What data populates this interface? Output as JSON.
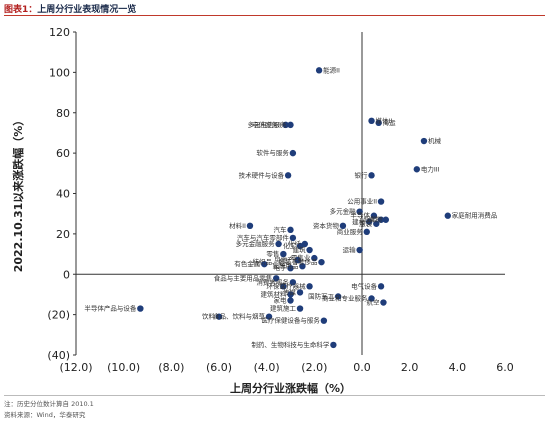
{
  "figure": {
    "label": "图表1：",
    "title": "上周分行业表现情况一览",
    "note": "注：历史分位数计算自 2010.1",
    "source": "资料来源：Wind，华泰研究"
  },
  "chart_data": {
    "type": "scatter",
    "xlabel": "上周分行业涨跌幅（%）",
    "ylabel": "2022.10.31以来涨跌幅（%）",
    "xlim": [
      -12,
      6
    ],
    "ylim": [
      -40,
      120
    ],
    "xticks": [
      "(12.0)",
      "(10.0)",
      "(8.0)",
      "(6.0)",
      "(4.0)",
      "(2.0)",
      "0.0",
      "2.0",
      "4.0",
      "6.0"
    ],
    "yticks": [
      "(40)",
      "(20)",
      "0",
      "20",
      "40",
      "60",
      "80",
      "100",
      "120"
    ],
    "grid": false,
    "marker_color": "#1f3d7a",
    "points": [
      {
        "label": "能源II",
        "x": -1.8,
        "y": 101
      },
      {
        "label": "媒体II",
        "x": 0.4,
        "y": 76
      },
      {
        "label": "海运",
        "x": 0.7,
        "y": 75
      },
      {
        "label": "电信服务II",
        "x": -3.2,
        "y": 74
      },
      {
        "label": "多元电信服务",
        "x": -3.0,
        "y": 74
      },
      {
        "label": "机械",
        "x": 2.6,
        "y": 66
      },
      {
        "label": "软件与服务",
        "x": -2.9,
        "y": 60
      },
      {
        "label": "电力III",
        "x": 2.3,
        "y": 52
      },
      {
        "label": "技术硬件与设备",
        "x": -3.1,
        "y": 49
      },
      {
        "label": "银行",
        "x": 0.4,
        "y": 49
      },
      {
        "label": "公用事业II",
        "x": 0.8,
        "y": 36
      },
      {
        "label": "多元金融",
        "x": -0.1,
        "y": 31
      },
      {
        "label": "家庭耐用消费品",
        "x": 3.6,
        "y": 29
      },
      {
        "label": "半导体",
        "x": 0.5,
        "y": 29
      },
      {
        "label": "保险",
        "x": 0.8,
        "y": 27
      },
      {
        "label": "建材",
        "x": 0.3,
        "y": 26
      },
      {
        "label": "食物",
        "x": 1.0,
        "y": 27
      },
      {
        "label": "服装",
        "x": 0.6,
        "y": 25
      },
      {
        "label": "材料II",
        "x": -4.7,
        "y": 24
      },
      {
        "label": "汽车",
        "x": -3.0,
        "y": 22
      },
      {
        "label": "汽车与汽车零部件",
        "x": -2.9,
        "y": 18
      },
      {
        "label": "资本货物",
        "x": -0.8,
        "y": 24
      },
      {
        "label": "商业服务",
        "x": 0.2,
        "y": 21
      },
      {
        "label": "多元金融服务",
        "x": -3.5,
        "y": 15
      },
      {
        "label": "化工",
        "x": -2.6,
        "y": 14
      },
      {
        "label": "化纤",
        "x": -2.4,
        "y": 15
      },
      {
        "label": "建筑",
        "x": -2.2,
        "y": 12
      },
      {
        "label": "运输",
        "x": -0.1,
        "y": 12
      },
      {
        "label": "零售",
        "x": -3.3,
        "y": 10
      },
      {
        "label": "零售业",
        "x": -2.0,
        "y": 8
      },
      {
        "label": "房地产",
        "x": -2.7,
        "y": 7
      },
      {
        "label": "纺织品、服装与奢侈品",
        "x": -1.7,
        "y": 6
      },
      {
        "label": "家居用品",
        "x": -2.5,
        "y": 4
      },
      {
        "label": "有色金属",
        "x": -4.1,
        "y": 5
      },
      {
        "label": "电子",
        "x": -3.0,
        "y": 3
      },
      {
        "label": "食品与主要用品零售",
        "x": -3.6,
        "y": -2
      },
      {
        "label": "消费者服务",
        "x": -2.9,
        "y": -4
      },
      {
        "label": "医疗器械",
        "x": -2.2,
        "y": -6
      },
      {
        "label": "环保",
        "x": -3.3,
        "y": -6
      },
      {
        "label": "电气设备",
        "x": 0.8,
        "y": -6
      },
      {
        "label": "传媒",
        "x": -2.6,
        "y": -9
      },
      {
        "label": "国防军工",
        "x": -1.0,
        "y": -11
      },
      {
        "label": "建筑材料",
        "x": -3.0,
        "y": -10
      },
      {
        "label": "家电",
        "x": -3.0,
        "y": -13
      },
      {
        "label": "商业和专业服务",
        "x": 0.4,
        "y": -12
      },
      {
        "label": "航空",
        "x": 0.9,
        "y": -14
      },
      {
        "label": "建筑施工",
        "x": -2.6,
        "y": -17
      },
      {
        "label": "半导体产品与设备",
        "x": -9.3,
        "y": -17
      },
      {
        "label": "饮料",
        "x": -6.0,
        "y": -21
      },
      {
        "label": "食品、饮料与烟草",
        "x": -3.9,
        "y": -21
      },
      {
        "label": "医疗保健设备与服务",
        "x": -1.6,
        "y": -23
      },
      {
        "label": "制药、生物科技与生命科学",
        "x": -1.2,
        "y": -35
      }
    ]
  }
}
